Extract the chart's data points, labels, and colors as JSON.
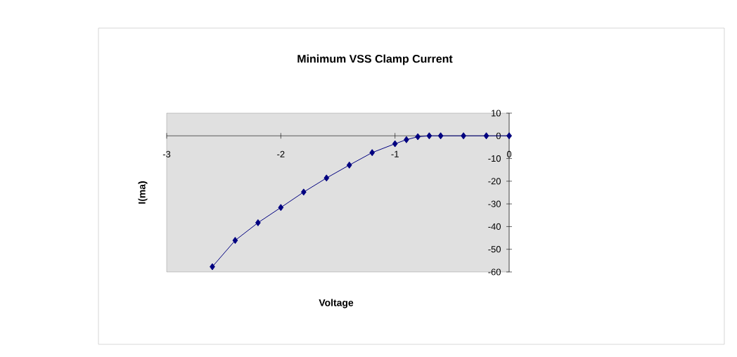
{
  "chart_data": {
    "type": "line",
    "title": "Minimum VSS Clamp Current",
    "xlabel": "Voltage",
    "ylabel": "I(ma)",
    "x": [
      -2.6,
      -2.4,
      -2.2,
      -2.0,
      -1.8,
      -1.6,
      -1.4,
      -1.2,
      -1.0,
      -0.9,
      -0.8,
      -0.7,
      -0.6,
      -0.4,
      -0.2,
      0
    ],
    "series": [
      {
        "color": "#000080",
        "values": [
          -57.7,
          -46.1,
          -38.3,
          -31.6,
          -24.8,
          -18.6,
          -12.9,
          -7.4,
          -3.5,
          -1.7,
          -0.4,
          0,
          0,
          0,
          0,
          0
        ]
      }
    ],
    "xlim": [
      -3,
      0
    ],
    "xticks": [
      -3,
      -2,
      -1,
      0
    ],
    "ylim": [
      -60,
      10
    ],
    "yticks": [
      -60,
      -50,
      -40,
      -30,
      -20,
      -10,
      0,
      10
    ],
    "marker": "diamond",
    "line_style": "solid",
    "grid": false
  }
}
